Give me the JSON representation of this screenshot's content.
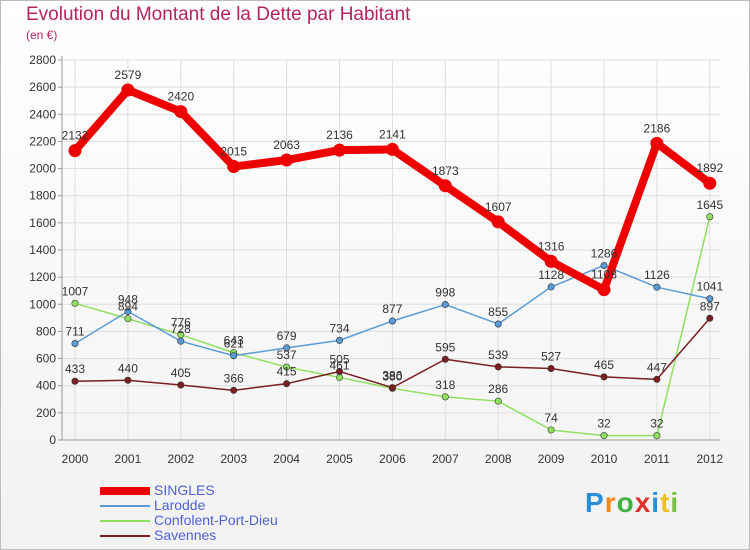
{
  "chart_data": {
    "type": "line",
    "title": "Evolution du Montant de la Dette par Habitant",
    "subtitle": "(en €)",
    "xlabel": "",
    "ylabel": "",
    "ylim": [
      0,
      2800
    ],
    "yticks": [
      0,
      200,
      400,
      600,
      800,
      1000,
      1200,
      1400,
      1600,
      1800,
      2000,
      2200,
      2400,
      2600,
      2800
    ],
    "x": [
      "2000",
      "2001",
      "2002",
      "2003",
      "2004",
      "2005",
      "2006",
      "2007",
      "2008",
      "2009",
      "2010",
      "2011",
      "2012"
    ],
    "grid": true,
    "legend_position": "bottom-left",
    "series": [
      {
        "name": "SINGLES",
        "color": "#ee0000",
        "values": [
          2132,
          2579,
          2420,
          2015,
          2063,
          2136,
          2141,
          1873,
          1607,
          1316,
          1108,
          2186,
          1892
        ]
      },
      {
        "name": "Larodde",
        "color": "#5b9bd5",
        "values": [
          711,
          948,
          728,
          621,
          679,
          734,
          877,
          998,
          855,
          1128,
          1286,
          1126,
          1041
        ]
      },
      {
        "name": "Confolent-Port-Dieu",
        "color": "#90e060",
        "values": [
          1007,
          894,
          776,
          643,
          537,
          461,
          380,
          318,
          286,
          74,
          32,
          32,
          1645
        ]
      },
      {
        "name": "Savennes",
        "color": "#7a1e22",
        "values": [
          433,
          440,
          405,
          366,
          415,
          505,
          386,
          595,
          539,
          527,
          465,
          447,
          897
        ]
      }
    ]
  },
  "logo": {
    "text": "Proxiti",
    "colors": [
      "#2a8fd8",
      "#f08a1c",
      "#40b040",
      "#e03030",
      "#2a8fd8",
      "#f0c020",
      "#7ac043"
    ]
  }
}
